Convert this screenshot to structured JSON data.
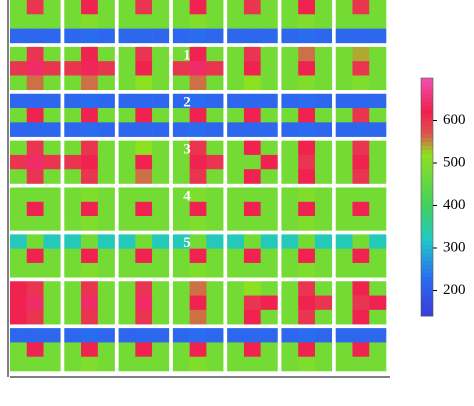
{
  "chart_data": {
    "type": "heatmap",
    "z": [
      [
        480,
        600,
        480,
        480,
        620,
        480,
        480,
        600,
        480,
        480,
        620,
        480,
        480,
        600,
        480,
        480,
        620,
        480,
        480,
        600,
        480
      ],
      [
        480,
        480,
        480,
        480,
        500,
        480,
        480,
        480,
        480,
        480,
        500,
        480,
        480,
        480,
        480,
        480,
        500,
        480,
        480,
        480,
        480
      ],
      [
        220,
        220,
        220,
        220,
        230,
        220,
        220,
        220,
        220,
        220,
        230,
        220,
        220,
        220,
        220,
        220,
        230,
        220,
        220,
        220,
        220
      ],
      [
        480,
        600,
        480,
        480,
        620,
        480,
        480,
        600,
        480,
        480,
        620,
        480,
        480,
        600,
        480,
        480,
        560,
        480,
        480,
        540,
        480
      ],
      [
        600,
        640,
        600,
        600,
        630,
        600,
        480,
        620,
        480,
        600,
        640,
        600,
        480,
        620,
        480,
        480,
        620,
        480,
        480,
        600,
        480
      ],
      [
        480,
        560,
        480,
        480,
        560,
        480,
        480,
        520,
        480,
        480,
        560,
        480,
        480,
        520,
        480,
        480,
        500,
        480,
        480,
        500,
        480
      ],
      [
        220,
        220,
        220,
        220,
        230,
        220,
        220,
        220,
        220,
        220,
        230,
        220,
        220,
        220,
        220,
        220,
        230,
        220,
        220,
        220,
        220
      ],
      [
        480,
        620,
        480,
        480,
        620,
        480,
        480,
        620,
        480,
        480,
        620,
        480,
        480,
        620,
        480,
        480,
        620,
        480,
        480,
        600,
        480
      ],
      [
        220,
        220,
        220,
        220,
        230,
        220,
        220,
        220,
        220,
        220,
        230,
        220,
        220,
        220,
        220,
        220,
        230,
        220,
        220,
        220,
        220
      ],
      [
        480,
        600,
        480,
        480,
        600,
        480,
        480,
        520,
        480,
        480,
        600,
        480,
        480,
        620,
        480,
        480,
        620,
        480,
        480,
        600,
        480
      ],
      [
        600,
        640,
        600,
        600,
        620,
        480,
        480,
        620,
        480,
        480,
        620,
        600,
        480,
        480,
        620,
        480,
        600,
        480,
        480,
        620,
        480
      ],
      [
        480,
        600,
        480,
        480,
        600,
        480,
        480,
        560,
        480,
        480,
        600,
        480,
        480,
        620,
        480,
        480,
        620,
        480,
        480,
        600,
        480
      ],
      [
        480,
        480,
        480,
        480,
        500,
        480,
        480,
        480,
        480,
        480,
        500,
        480,
        480,
        480,
        480,
        480,
        500,
        480,
        480,
        480,
        480
      ],
      [
        480,
        620,
        480,
        480,
        620,
        480,
        480,
        620,
        480,
        480,
        620,
        480,
        480,
        620,
        480,
        480,
        620,
        480,
        480,
        620,
        480
      ],
      [
        480,
        480,
        480,
        480,
        500,
        480,
        480,
        480,
        480,
        480,
        500,
        480,
        480,
        480,
        480,
        480,
        500,
        480,
        480,
        480,
        480
      ],
      [
        330,
        480,
        330,
        330,
        480,
        330,
        330,
        480,
        330,
        330,
        480,
        330,
        330,
        480,
        330,
        330,
        480,
        330,
        330,
        480,
        330
      ],
      [
        480,
        620,
        480,
        480,
        620,
        480,
        480,
        620,
        480,
        480,
        620,
        480,
        480,
        620,
        480,
        480,
        620,
        480,
        480,
        620,
        480
      ],
      [
        480,
        480,
        480,
        480,
        500,
        480,
        480,
        480,
        480,
        480,
        500,
        480,
        480,
        480,
        480,
        480,
        500,
        480,
        480,
        480,
        480
      ],
      [
        620,
        600,
        480,
        480,
        600,
        480,
        480,
        600,
        480,
        480,
        560,
        480,
        480,
        520,
        480,
        480,
        600,
        480,
        480,
        620,
        480
      ],
      [
        620,
        640,
        480,
        480,
        640,
        480,
        480,
        640,
        480,
        480,
        620,
        480,
        480,
        600,
        620,
        480,
        620,
        600,
        480,
        600,
        620
      ],
      [
        620,
        600,
        480,
        480,
        600,
        480,
        480,
        600,
        480,
        480,
        560,
        480,
        480,
        620,
        480,
        480,
        600,
        480,
        480,
        620,
        480
      ],
      [
        220,
        220,
        220,
        220,
        230,
        220,
        220,
        220,
        220,
        220,
        230,
        220,
        220,
        220,
        220,
        220,
        230,
        220,
        220,
        220,
        220
      ],
      [
        480,
        620,
        480,
        480,
        620,
        480,
        480,
        620,
        480,
        480,
        620,
        480,
        480,
        620,
        480,
        480,
        620,
        480,
        480,
        620,
        480
      ],
      [
        480,
        480,
        480,
        480,
        500,
        480,
        480,
        480,
        480,
        480,
        500,
        480,
        480,
        480,
        480,
        480,
        500,
        480,
        480,
        480,
        480
      ]
    ],
    "zlim": [
      140,
      700
    ],
    "colorbar_ticks": [
      200,
      300,
      400,
      500,
      600
    ],
    "annotations": [
      "1",
      "2",
      "3",
      "4",
      "5"
    ]
  }
}
